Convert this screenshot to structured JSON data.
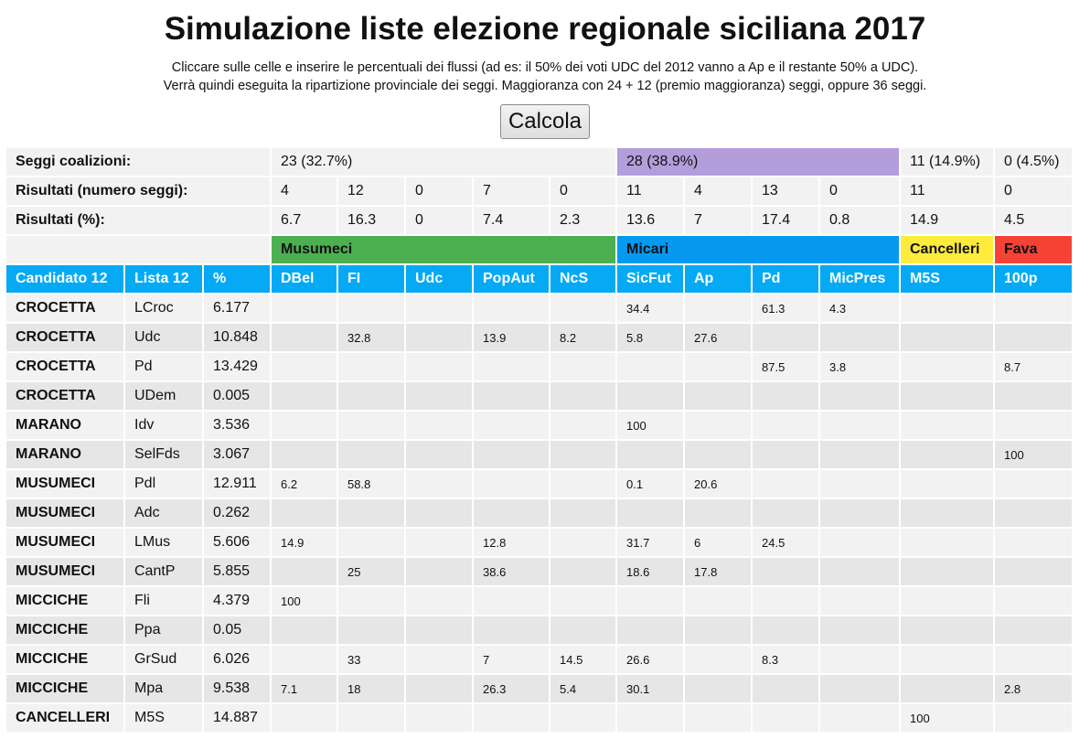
{
  "title": "Simulazione liste elezione regionale siciliana 2017",
  "description": [
    "Cliccare sulle celle e inserire le percentuali dei flussi (ad es: il 50% dei voti UDC del 2012 vanno a Ap e il restante 50% a UDC).",
    "Verrà quindi eseguita la ripartizione provinciale dei seggi. Maggioranza con 24 + 12 (premio maggioranza) seggi, oppure 36 seggi."
  ],
  "calcola_label": "Calcola",
  "summary": {
    "seggi_label": "Seggi coalizioni:",
    "seggi": [
      "23 (32.7%)",
      "28 (38.9%)",
      "11 (14.9%)",
      "0 (4.5%)"
    ],
    "numero_label": "Risultati (numero seggi):",
    "numero": [
      "4",
      "12",
      "0",
      "7",
      "0",
      "11",
      "4",
      "13",
      "0",
      "11",
      "0"
    ],
    "perc_label": "Risultati (%):",
    "perc": [
      "6.7",
      "16.3",
      "0",
      "7.4",
      "2.3",
      "13.6",
      "7",
      "17.4",
      "0.8",
      "14.9",
      "4.5"
    ]
  },
  "coalitions": [
    {
      "name": "Musumeci",
      "color": "#4caf50"
    },
    {
      "name": "Micari",
      "color": "#0699f0"
    },
    {
      "name": "Cancelleri",
      "color": "#ffeb3b"
    },
    {
      "name": "Fava",
      "color": "#f44336"
    }
  ],
  "headers": [
    "Candidato 12",
    "Lista 12",
    "%",
    "DBel",
    "FI",
    "Udc",
    "PopAut",
    "NcS",
    "SicFut",
    "Ap",
    "Pd",
    "MicPres",
    "M5S",
    "100p"
  ],
  "rows": [
    {
      "candidato": "CROCETTA",
      "lista": "LCroc",
      "perc": "6.177",
      "flows": [
        "",
        "",
        "",
        "",
        "",
        "34.4",
        "",
        "61.3",
        "4.3",
        "",
        ""
      ]
    },
    {
      "candidato": "CROCETTA",
      "lista": "Udc",
      "perc": "10.848",
      "flows": [
        "",
        "32.8",
        "",
        "13.9",
        "8.2",
        "5.8",
        "27.6",
        "",
        "",
        "",
        ""
      ]
    },
    {
      "candidato": "CROCETTA",
      "lista": "Pd",
      "perc": "13.429",
      "flows": [
        "",
        "",
        "",
        "",
        "",
        "",
        "",
        "87.5",
        "3.8",
        "",
        "8.7"
      ]
    },
    {
      "candidato": "CROCETTA",
      "lista": "UDem",
      "perc": "0.005",
      "flows": [
        "",
        "",
        "",
        "",
        "",
        "",
        "",
        "",
        "",
        "",
        ""
      ]
    },
    {
      "candidato": "MARANO",
      "lista": "Idv",
      "perc": "3.536",
      "flows": [
        "",
        "",
        "",
        "",
        "",
        "100",
        "",
        "",
        "",
        "",
        ""
      ]
    },
    {
      "candidato": "MARANO",
      "lista": "SelFds",
      "perc": "3.067",
      "flows": [
        "",
        "",
        "",
        "",
        "",
        "",
        "",
        "",
        "",
        "",
        "100"
      ]
    },
    {
      "candidato": "MUSUMECI",
      "lista": "Pdl",
      "perc": "12.911",
      "flows": [
        "6.2",
        "58.8",
        "",
        "",
        "",
        "0.1",
        "20.6",
        "",
        "",
        "",
        ""
      ]
    },
    {
      "candidato": "MUSUMECI",
      "lista": "Adc",
      "perc": "0.262",
      "flows": [
        "",
        "",
        "",
        "",
        "",
        "",
        "",
        "",
        "",
        "",
        ""
      ]
    },
    {
      "candidato": "MUSUMECI",
      "lista": "LMus",
      "perc": "5.606",
      "flows": [
        "14.9",
        "",
        "",
        "12.8",
        "",
        "31.7",
        "6",
        "24.5",
        "",
        "",
        ""
      ]
    },
    {
      "candidato": "MUSUMECI",
      "lista": "CantP",
      "perc": "5.855",
      "flows": [
        "",
        "25",
        "",
        "38.6",
        "",
        "18.6",
        "17.8",
        "",
        "",
        "",
        ""
      ]
    },
    {
      "candidato": "MICCICHE",
      "lista": "Fli",
      "perc": "4.379",
      "flows": [
        "100",
        "",
        "",
        "",
        "",
        "",
        "",
        "",
        "",
        "",
        ""
      ]
    },
    {
      "candidato": "MICCICHE",
      "lista": "Ppa",
      "perc": "0.05",
      "flows": [
        "",
        "",
        "",
        "",
        "",
        "",
        "",
        "",
        "",
        "",
        ""
      ]
    },
    {
      "candidato": "MICCICHE",
      "lista": "GrSud",
      "perc": "6.026",
      "flows": [
        "",
        "33",
        "",
        "7",
        "14.5",
        "26.6",
        "",
        "8.3",
        "",
        "",
        ""
      ]
    },
    {
      "candidato": "MICCICHE",
      "lista": "Mpa",
      "perc": "9.538",
      "flows": [
        "7.1",
        "18",
        "",
        "26.3",
        "5.4",
        "30.1",
        "",
        "",
        "",
        "",
        "2.8"
      ]
    },
    {
      "candidato": "CANCELLERI",
      "lista": "M5S",
      "perc": "14.887",
      "flows": [
        "",
        "",
        "",
        "",
        "",
        "",
        "",
        "",
        "",
        "100",
        ""
      ]
    }
  ]
}
